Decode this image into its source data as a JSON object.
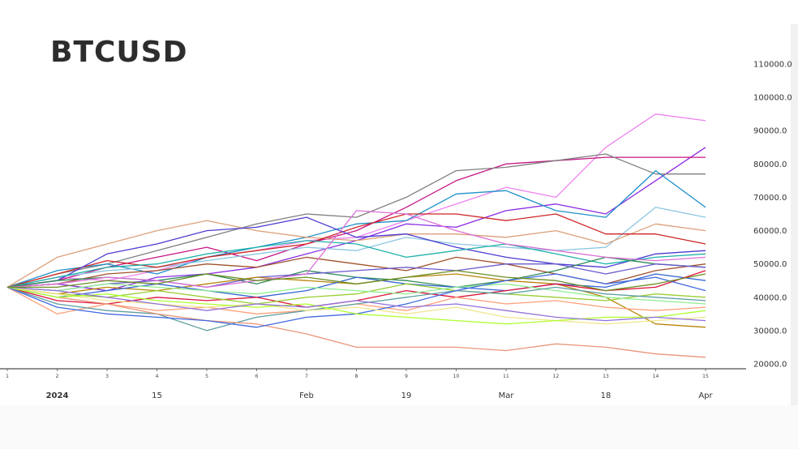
{
  "title": "BTCUSD",
  "chart_data": {
    "type": "line",
    "title": "BTCUSD",
    "xlabel": "",
    "ylabel": "",
    "ylim": [
      20000,
      110000
    ],
    "y_ticks": [
      "110000.0",
      "100000.0",
      "90000.0",
      "80000.0",
      "70000.0",
      "60000.0",
      "50000.0",
      "40000.0",
      "30000.0",
      "20000.0"
    ],
    "y_tick_values": [
      110000,
      100000,
      90000,
      80000,
      70000,
      60000,
      50000,
      40000,
      30000,
      20000
    ],
    "y_axis_position": "right",
    "x_steps": [
      "1",
      "2",
      "3",
      "4",
      "5",
      "6",
      "7",
      "8",
      "9",
      "10",
      "11",
      "12",
      "13",
      "14",
      "15"
    ],
    "x_date_labels": [
      {
        "label": "2024",
        "step": 2,
        "bold": true
      },
      {
        "label": "15",
        "step": 4
      },
      {
        "label": "Feb",
        "step": 7
      },
      {
        "label": "19",
        "step": 9
      },
      {
        "label": "Mar",
        "step": 11
      },
      {
        "label": "18",
        "step": 13
      },
      {
        "label": "Apr",
        "step": 15
      }
    ],
    "grid": false,
    "legend": "none",
    "x": [
      1,
      2,
      3,
      4,
      5,
      6,
      7,
      8,
      9,
      10,
      11,
      12,
      13,
      14,
      15
    ],
    "series": [
      {
        "color": "#ee82ee",
        "values": [
          43000,
          46000,
          45000,
          48000,
          52000,
          54000,
          57000,
          58000,
          63000,
          68000,
          73000,
          70000,
          85000,
          95000,
          93000
        ]
      },
      {
        "color": "#8b2be2",
        "values": [
          43000,
          44000,
          42000,
          46000,
          47000,
          49000,
          53000,
          57000,
          62000,
          61000,
          66000,
          68000,
          65000,
          75000,
          85000
        ]
      },
      {
        "color": "#c71585",
        "values": [
          43000,
          45000,
          49000,
          52000,
          55000,
          51000,
          56000,
          60000,
          67000,
          75000,
          80000,
          81000,
          82000,
          82000,
          82000
        ]
      },
      {
        "color": "#808080",
        "values": [
          43000,
          47000,
          50000,
          54000,
          58000,
          62000,
          65000,
          64000,
          70000,
          78000,
          79000,
          81000,
          83000,
          77000,
          77000
        ]
      },
      {
        "color": "#1e90c8",
        "values": [
          43000,
          48000,
          50000,
          47000,
          52000,
          55000,
          58000,
          62000,
          63000,
          71000,
          72000,
          66000,
          64000,
          78000,
          67000
        ]
      },
      {
        "color": "#8cc6e0",
        "values": [
          43000,
          46000,
          48000,
          49000,
          51000,
          53000,
          55000,
          54000,
          58000,
          56000,
          55000,
          54000,
          55000,
          67000,
          64000
        ]
      },
      {
        "color": "#dca07a",
        "values": [
          43000,
          52000,
          56000,
          60000,
          63000,
          60000,
          58000,
          57000,
          59000,
          59000,
          58000,
          60000,
          56000,
          62000,
          60000
        ]
      },
      {
        "color": "#cd2626",
        "values": [
          43000,
          47000,
          51000,
          49000,
          52000,
          54000,
          56000,
          61000,
          65000,
          65000,
          63000,
          65000,
          59000,
          59000,
          56000
        ]
      },
      {
        "color": "#4b3bd1",
        "values": [
          43000,
          45000,
          53000,
          56000,
          60000,
          61000,
          64000,
          58000,
          59000,
          55000,
          52000,
          50000,
          49000,
          53000,
          54000
        ]
      },
      {
        "color": "#20b2aa",
        "values": [
          43000,
          46000,
          49000,
          50000,
          53000,
          55000,
          57000,
          56000,
          52000,
          54000,
          56000,
          53000,
          50000,
          52000,
          53000
        ]
      },
      {
        "color": "#a0522d",
        "values": [
          43000,
          44000,
          47000,
          48000,
          50000,
          49000,
          52000,
          50000,
          48000,
          52000,
          50000,
          47000,
          44000,
          48000,
          50000
        ]
      },
      {
        "color": "#2e8b57",
        "values": [
          43000,
          45000,
          46000,
          45000,
          47000,
          44000,
          48000,
          46000,
          45000,
          43000,
          45000,
          48000,
          52000,
          50000,
          49000
        ]
      },
      {
        "color": "#6a5acd",
        "values": [
          43000,
          42000,
          44000,
          45000,
          43000,
          46000,
          47000,
          48000,
          49000,
          48000,
          50000,
          50000,
          47000,
          50000,
          49000
        ]
      },
      {
        "color": "#b8860b",
        "values": [
          43000,
          41000,
          43000,
          42000,
          44000,
          46000,
          45000,
          44000,
          46000,
          47000,
          45000,
          44000,
          40000,
          32000,
          31000
        ]
      },
      {
        "color": "#3465d4",
        "values": [
          43000,
          40000,
          42000,
          44000,
          42000,
          40000,
          42000,
          46000,
          44000,
          43000,
          42000,
          44000,
          43000,
          47000,
          45000
        ]
      },
      {
        "color": "#dc143c",
        "values": [
          43000,
          39000,
          38000,
          40000,
          39000,
          40000,
          37000,
          39000,
          42000,
          40000,
          42000,
          44000,
          42000,
          43000,
          48000
        ]
      },
      {
        "color": "#9acd32",
        "values": [
          43000,
          41000,
          40000,
          42000,
          40000,
          38000,
          40000,
          41000,
          44000,
          42000,
          41000,
          40000,
          39000,
          41000,
          40000
        ]
      },
      {
        "color": "#ffa07a",
        "values": [
          43000,
          35000,
          38000,
          36000,
          37000,
          35000,
          36000,
          38000,
          36000,
          40000,
          38000,
          39000,
          37000,
          36000,
          37000
        ]
      },
      {
        "color": "#90ee90",
        "values": [
          43000,
          42000,
          44000,
          43000,
          42000,
          41000,
          43000,
          42000,
          41000,
          43000,
          44000,
          42000,
          40000,
          39000,
          38000
        ]
      },
      {
        "color": "#5f9ea0",
        "values": [
          43000,
          38000,
          36000,
          35000,
          30000,
          34000,
          36000,
          38000,
          40000,
          42000,
          41000,
          43000,
          41000,
          40000,
          39000
        ]
      },
      {
        "color": "#e9967a",
        "values": [
          43000,
          40000,
          38000,
          35000,
          33000,
          32000,
          29000,
          25000,
          25000,
          25000,
          24000,
          26000,
          25000,
          23000,
          22000
        ]
      },
      {
        "color": "#4169e1",
        "values": [
          43000,
          37000,
          35000,
          34000,
          33000,
          31000,
          34000,
          35000,
          38000,
          42000,
          45000,
          47000,
          44000,
          46000,
          42000
        ]
      },
      {
        "color": "#f0e68c",
        "values": [
          43000,
          41000,
          39000,
          38000,
          37000,
          38000,
          36000,
          37000,
          35000,
          37000,
          34000,
          33000,
          32000,
          33000,
          34000
        ]
      },
      {
        "color": "#adff2f",
        "values": [
          43000,
          40000,
          41000,
          39000,
          38000,
          37000,
          38000,
          35000,
          34000,
          33000,
          32000,
          33000,
          34000,
          34000,
          36000
        ]
      },
      {
        "color": "#9370db",
        "values": [
          43000,
          42000,
          40000,
          38000,
          36000,
          38000,
          37000,
          39000,
          37000,
          38000,
          36000,
          34000,
          33000,
          34000,
          33000
        ]
      },
      {
        "color": "#da70d6",
        "values": [
          43000,
          44000,
          46000,
          45000,
          43000,
          45000,
          47000,
          66000,
          65000,
          60000,
          56000,
          54000,
          52000,
          51000,
          52000
        ]
      },
      {
        "color": "#6b8e23",
        "values": [
          43000,
          43000,
          45000,
          44000,
          47000,
          45000,
          46000,
          44000,
          46000,
          48000,
          46000,
          45000,
          42000,
          44000,
          47000
        ]
      }
    ]
  }
}
